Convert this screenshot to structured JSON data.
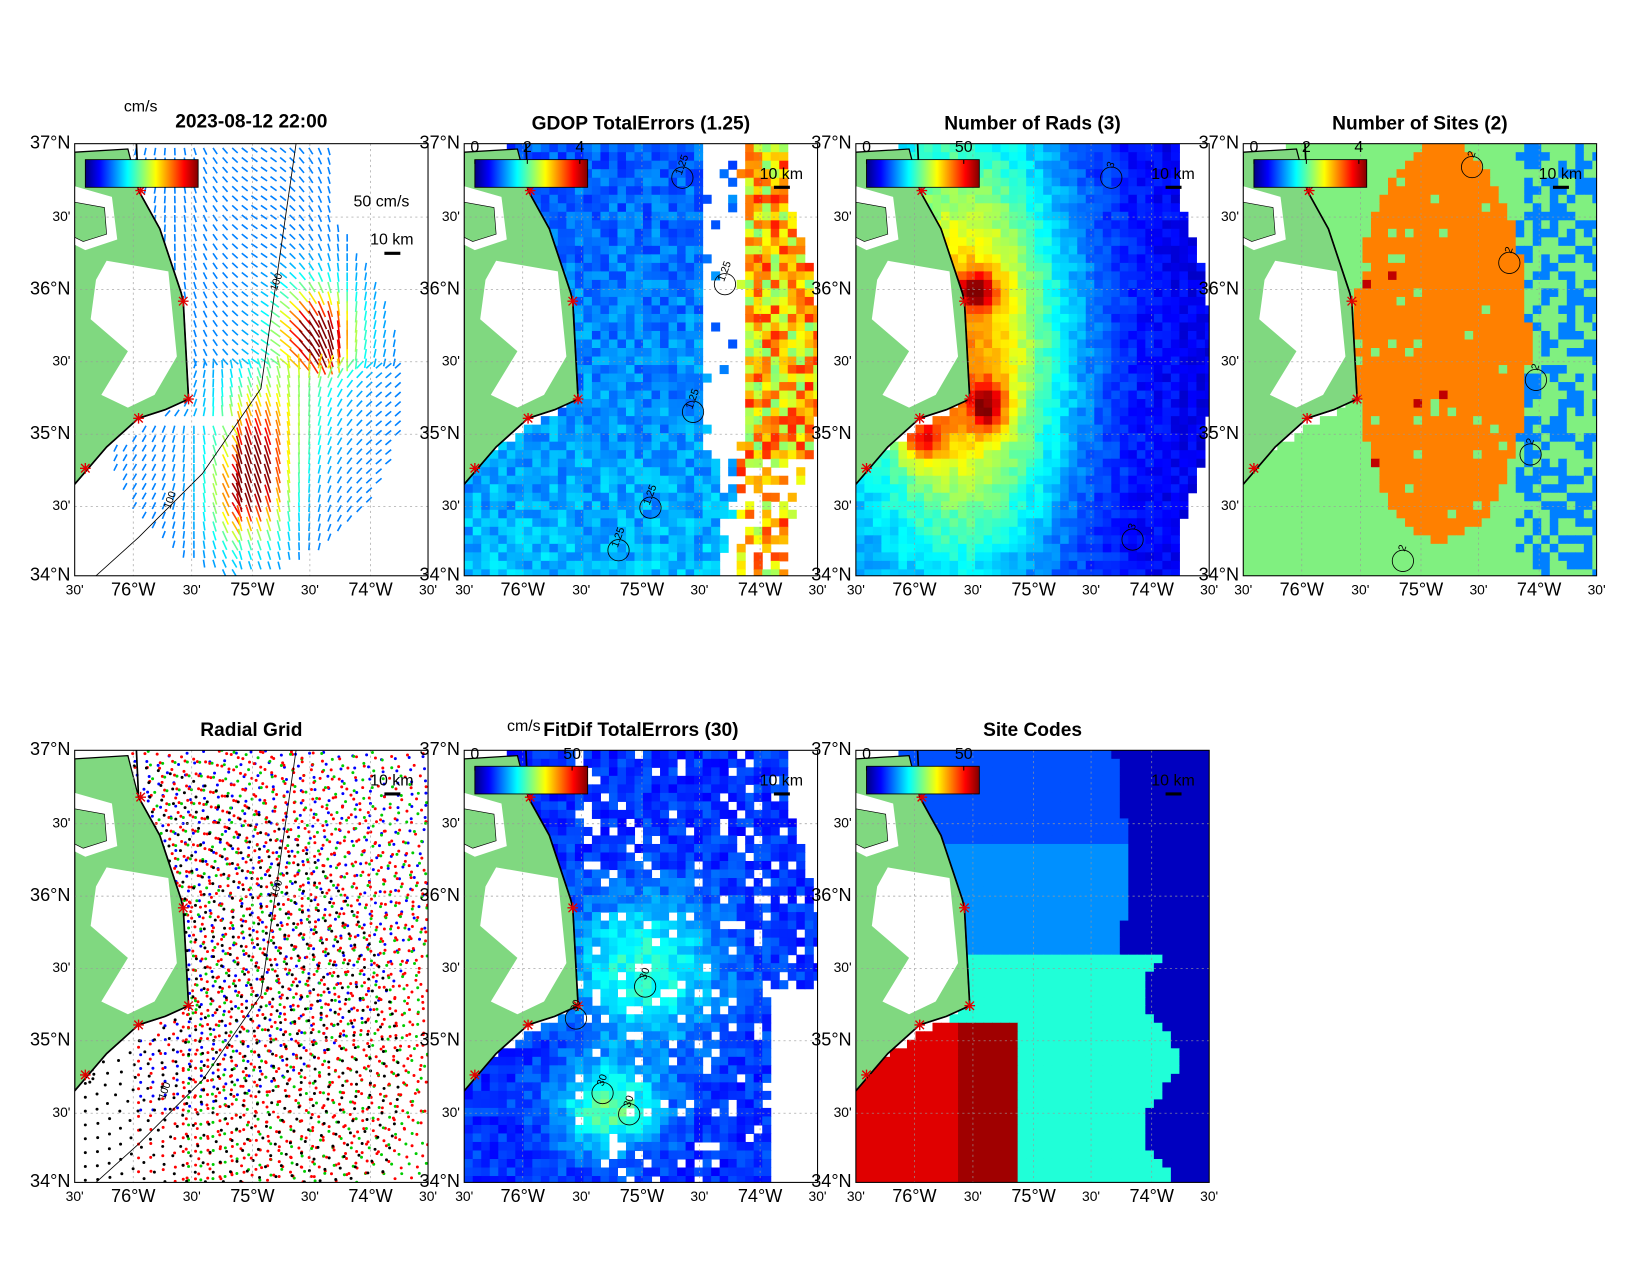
{
  "lat_ticks": [
    "37°N",
    "30'",
    "36°N",
    "30'",
    "35°N",
    "30'",
    "34°N"
  ],
  "lon_ticks": [
    "30'",
    "76°W",
    "30'",
    "75°W",
    "30'",
    "74°W",
    "30'"
  ],
  "panels": [
    {
      "title": "2023-08-12 22:00",
      "colorbar_label": "cm/s",
      "speed_scale": "50 cm/s",
      "distance_scale": "10 km",
      "contour_labels": [
        "100",
        "100"
      ]
    },
    {
      "title": "GDOP TotalErrors (1.25)",
      "colorbar_ticks": [
        0,
        2,
        4
      ],
      "distance_scale": "10 km",
      "contour_labels": [
        "1.25",
        "1.25",
        "1.25",
        "1.25",
        "1.25"
      ]
    },
    {
      "title": "Number of Rads (3)",
      "colorbar_ticks": [
        0,
        50
      ],
      "distance_scale": "10 km",
      "contour_labels": [
        "3",
        "3"
      ]
    },
    {
      "title": "Number of Sites (2)",
      "colorbar_ticks": [
        0,
        2,
        4
      ],
      "distance_scale": "10 km",
      "contour_labels": [
        "2",
        "2",
        "2",
        "2",
        "2"
      ]
    },
    {
      "title": "Radial Grid",
      "distance_scale": "10 km",
      "contour_labels": [
        "100",
        "100"
      ]
    },
    {
      "title": "FitDif TotalErrors (30)",
      "colorbar_label": "cm/s",
      "colorbar_ticks": [
        0,
        50
      ],
      "distance_scale": "10 km",
      "contour_labels": [
        "30",
        "30",
        "30",
        "30"
      ]
    },
    {
      "title": "Site Codes",
      "colorbar_ticks": [
        0,
        50
      ],
      "distance_scale": "10 km"
    }
  ]
}
